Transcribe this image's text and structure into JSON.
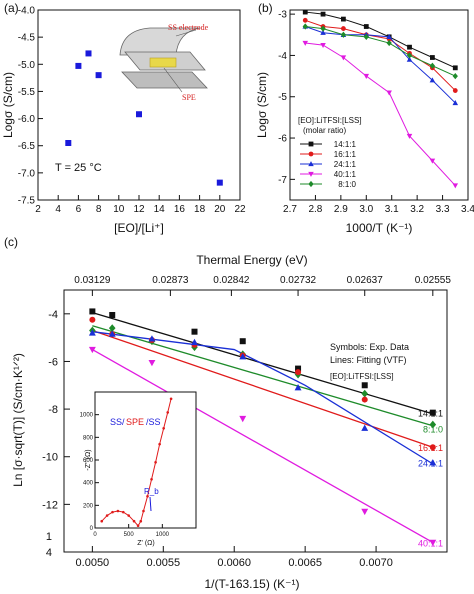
{
  "panels": {
    "a": "(a)",
    "b": "(b)",
    "c": "(c)"
  },
  "chart_data": [
    {
      "panel": "a",
      "type": "scatter",
      "title": "",
      "xlabel": "[EO]/[Li⁺]",
      "ylabel": "Logσ (S/cm)",
      "xlim": [
        2,
        22
      ],
      "ylim": [
        -7.5,
        -4.0
      ],
      "xticks": [
        2,
        4,
        6,
        8,
        10,
        12,
        14,
        16,
        18,
        20,
        22
      ],
      "yticks": [
        -7.5,
        -7.0,
        -6.5,
        -6.0,
        -5.5,
        -5.0,
        -4.5,
        -4.0
      ],
      "ytick_labels": [
        "-7.5",
        "-7.0",
        "-6.5",
        "-6.0",
        "-5.5",
        "-5.0",
        "-4.5",
        "-4.0"
      ],
      "annotation": "T = 25 °C",
      "inset_labels": [
        "SS electrode",
        "SPE"
      ],
      "marker_color": "#1a1adb",
      "points": [
        {
          "x": 5,
          "y": -6.45
        },
        {
          "x": 6,
          "y": -5.03
        },
        {
          "x": 7,
          "y": -4.8
        },
        {
          "x": 8,
          "y": -5.2
        },
        {
          "x": 12,
          "y": -5.92
        },
        {
          "x": 20,
          "y": -7.18
        }
      ]
    },
    {
      "panel": "b",
      "type": "line",
      "title": "",
      "xlabel": "1000/T (K⁻¹)",
      "ylabel": "Logσ (S/cm)",
      "xlim": [
        2.7,
        3.4
      ],
      "ylim": [
        -7.5,
        -2.9
      ],
      "xticks": [
        2.7,
        2.8,
        2.9,
        3.0,
        3.1,
        3.2,
        3.3,
        3.4
      ],
      "xtick_labels": [
        "2.7",
        "2.8",
        "2.9",
        "3.0",
        "3.1",
        "3.2",
        "3.3",
        "3.4"
      ],
      "yticks": [
        -7,
        -6,
        -5,
        -4,
        -3
      ],
      "legend_title": "[EO]:LiTFSI:[LSS]",
      "legend_subtitle": "(molar ratio)",
      "legend_position": "bottom-left",
      "series": [
        {
          "name": "14:1:1",
          "color": "#111111",
          "marker": "square",
          "x": [
            2.76,
            2.83,
            2.91,
            3.0,
            3.09,
            3.17,
            3.26,
            3.35
          ],
          "y": [
            -2.95,
            -3.0,
            -3.12,
            -3.3,
            -3.55,
            -3.8,
            -4.05,
            -4.3
          ]
        },
        {
          "name": "16:1:1",
          "color": "#e01b1b",
          "marker": "circle",
          "x": [
            2.76,
            2.83,
            2.91,
            3.0,
            3.09,
            3.17,
            3.26,
            3.35
          ],
          "y": [
            -3.15,
            -3.3,
            -3.35,
            -3.5,
            -3.6,
            -3.95,
            -4.3,
            -4.85
          ]
        },
        {
          "name": "24:1:1",
          "color": "#1a2fd6",
          "marker": "triangle-up",
          "x": [
            2.76,
            2.83,
            2.91,
            3.0,
            3.09,
            3.17,
            3.26,
            3.35
          ],
          "y": [
            -3.3,
            -3.45,
            -3.5,
            -3.5,
            -3.55,
            -4.1,
            -4.6,
            -5.15
          ]
        },
        {
          "name": "40:1:1",
          "color": "#e01be0",
          "marker": "triangle-down",
          "x": [
            2.76,
            2.83,
            2.91,
            3.0,
            3.09,
            3.17,
            3.26,
            3.35
          ],
          "y": [
            -3.7,
            -3.75,
            -4.05,
            -4.5,
            -4.9,
            -5.95,
            -6.55,
            -7.15
          ]
        },
        {
          "name": "8:1:0",
          "color": "#1e8b2a",
          "marker": "diamond",
          "x": [
            2.76,
            2.83,
            2.91,
            3.0,
            3.09,
            3.17,
            3.26,
            3.35
          ],
          "y": [
            -3.3,
            -3.35,
            -3.5,
            -3.55,
            -3.7,
            -4.0,
            -4.25,
            -4.5
          ]
        }
      ]
    },
    {
      "panel": "c",
      "type": "scatter",
      "title": "",
      "xlabel": "1/(T-163.15) (K⁻¹)",
      "ylabel": "Ln [σ·sqrt(T)] (S/cm·K¹ᐟ²)",
      "top_xlabel": "Thermal Energy (eV)",
      "top_ticks": [
        "0.03129",
        "0.02873",
        "0.02842",
        "0.02732",
        "0.02637",
        "0.02555"
      ],
      "top_tick_x": [
        0.005,
        0.00555,
        0.00598,
        0.00645,
        0.00692,
        0.0074
      ],
      "xlim": [
        0.0048,
        0.0075
      ],
      "ylim": [
        -14,
        -3
      ],
      "xticks": [
        0.005,
        0.0055,
        0.006,
        0.0065,
        0.007
      ],
      "xtick_labels": [
        "0.0050",
        "0.0055",
        "0.0060",
        "0.0065",
        "0.0070"
      ],
      "yticks": [
        -4,
        -6,
        -8,
        -10,
        -12
      ],
      "ytick_labels": [
        "-4",
        "-6",
        "-8",
        "-10",
        "-12"
      ],
      "extra_ytick_labels": [
        "1",
        "4"
      ],
      "legend_lines": [
        "Symbols: Exp. Data",
        "Lines: Fitting (VTF)",
        "[EO]:LiTFSI:[LSS]"
      ],
      "series": [
        {
          "name": "14:1:1",
          "color": "#111111",
          "marker": "square",
          "x": [
            0.005,
            0.00514,
            0.00572,
            0.00606,
            0.00645,
            0.00692,
            0.0074
          ],
          "y": [
            -3.9,
            -4.05,
            -4.75,
            -5.15,
            -6.3,
            -7.0,
            -8.15
          ],
          "fit": [
            [
              0.005,
              -3.95
            ],
            [
              0.0074,
              -8.2
            ]
          ]
        },
        {
          "name": "8:1:0",
          "color": "#1e8b2a",
          "marker": "diamond",
          "x": [
            0.005,
            0.00514,
            0.00542,
            0.00572,
            0.00606,
            0.00645,
            0.00692,
            0.0074
          ],
          "y": [
            -4.7,
            -4.6,
            -5.15,
            -5.4,
            -5.7,
            -6.55,
            -7.35,
            -8.65
          ],
          "fit": [
            [
              0.005,
              -4.5
            ],
            [
              0.0074,
              -8.7
            ]
          ]
        },
        {
          "name": "16:1:1",
          "color": "#e01b1b",
          "marker": "circle",
          "x": [
            0.005,
            0.00514,
            0.00542,
            0.00572,
            0.00606,
            0.00645,
            0.00692,
            0.0074
          ],
          "y": [
            -4.25,
            -4.85,
            -5.1,
            -5.3,
            -5.75,
            -6.45,
            -7.6,
            -9.6
          ],
          "fit": [
            [
              0.005,
              -4.7
            ],
            [
              0.0074,
              -9.6
            ]
          ]
        },
        {
          "name": "24:1:1",
          "color": "#1a2fd6",
          "marker": "triangle-up",
          "x": [
            0.005,
            0.00514,
            0.00542,
            0.00572,
            0.00606,
            0.00645,
            0.00692,
            0.0074
          ],
          "y": [
            -4.8,
            -4.85,
            -5.05,
            -5.2,
            -5.8,
            -7.1,
            -8.8,
            -10.25
          ],
          "fit": [
            [
              0.005,
              -4.75
            ],
            [
              0.006,
              -5.5
            ],
            [
              0.0065,
              -7.0
            ],
            [
              0.0074,
              -10.3
            ]
          ]
        },
        {
          "name": "40:1:1",
          "color": "#e01be0",
          "marker": "triangle-down",
          "x": [
            0.005,
            0.00542,
            0.00606,
            0.00692,
            0.0074
          ],
          "y": [
            -5.5,
            -6.05,
            -8.4,
            -12.3,
            -13.6
          ],
          "fit": [
            [
              0.005,
              -5.5
            ],
            [
              0.0074,
              -13.6
            ]
          ]
        }
      ],
      "inset": {
        "type": "line",
        "label_parts": [
          "SS/",
          "SPE",
          "/SS"
        ],
        "label_colors": [
          "#1a1adb",
          "#e01b1b",
          "#1a1adb"
        ],
        "xlabel": "Z' (Ω)",
        "ylabel": "-Z'' (Ω)",
        "annotation": "R_b",
        "xlim": [
          0,
          1500
        ],
        "ylim": [
          0,
          1200
        ],
        "xticks": [
          0,
          500,
          1000
        ],
        "yticks": [
          0,
          200,
          400,
          600,
          800,
          1000
        ],
        "x": [
          100,
          180,
          260,
          340,
          420,
          500,
          580,
          640,
          680,
          720,
          780,
          840,
          900,
          960,
          1020,
          1080,
          1130
        ],
        "y": [
          60,
          110,
          140,
          150,
          140,
          110,
          60,
          20,
          60,
          150,
          280,
          430,
          580,
          740,
          880,
          1020,
          1140
        ]
      }
    }
  ]
}
